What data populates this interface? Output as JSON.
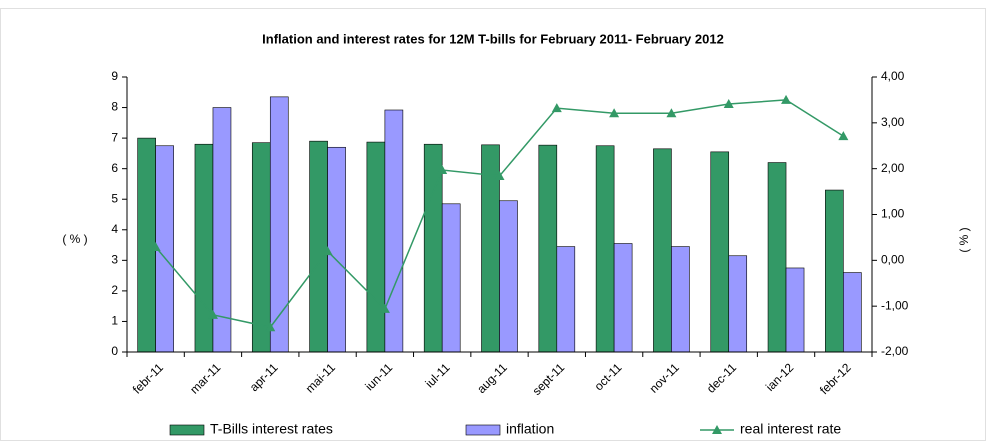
{
  "chart_data": {
    "type": "bar-line",
    "title": "Inflation and interest rates for 12M T-bills for February 2011- February 2012",
    "y_label": "( % )",
    "y2_label": "( % )",
    "categories": [
      "febr-11",
      "mar-11",
      "apr-11",
      "mai-11",
      "iun-11",
      "iul-11",
      "aug-11",
      "sept-11",
      "oct-11",
      "nov-11",
      "dec-11",
      "ian-12",
      "febr-12"
    ],
    "series": [
      {
        "name": "T-Bills interest rates",
        "color": "#339966",
        "kind": "bar",
        "values": [
          7.0,
          6.8,
          6.85,
          6.9,
          6.87,
          6.8,
          6.78,
          6.77,
          6.75,
          6.65,
          6.55,
          6.2,
          5.3
        ]
      },
      {
        "name": "inflation",
        "color": "#9999ff",
        "kind": "bar",
        "values": [
          6.75,
          8.0,
          8.35,
          6.7,
          7.92,
          4.85,
          4.95,
          3.45,
          3.55,
          3.45,
          3.15,
          2.75,
          2.6
        ]
      },
      {
        "name": "real interest rate",
        "color": "#339966",
        "kind": "line",
        "axis": "y2",
        "values": [
          0.29,
          -1.19,
          -1.46,
          0.2,
          -1.06,
          1.97,
          1.84,
          3.32,
          3.21,
          3.21,
          3.41,
          3.5,
          2.71
        ]
      }
    ],
    "ylim": [
      0,
      9
    ],
    "yticks": [
      0,
      1,
      2,
      3,
      4,
      5,
      6,
      7,
      8,
      9
    ],
    "y2lim": [
      -2,
      4
    ],
    "y2ticks": [
      {
        "value": -2,
        "label": "-2,00"
      },
      {
        "value": -1,
        "label": "-1,00"
      },
      {
        "value": 0,
        "label": "0,00"
      },
      {
        "value": 1,
        "label": "1,00"
      },
      {
        "value": 2,
        "label": "2,00"
      },
      {
        "value": 3,
        "label": "3,00"
      },
      {
        "value": 4,
        "label": "4,00"
      }
    ],
    "legend": "bottom"
  }
}
